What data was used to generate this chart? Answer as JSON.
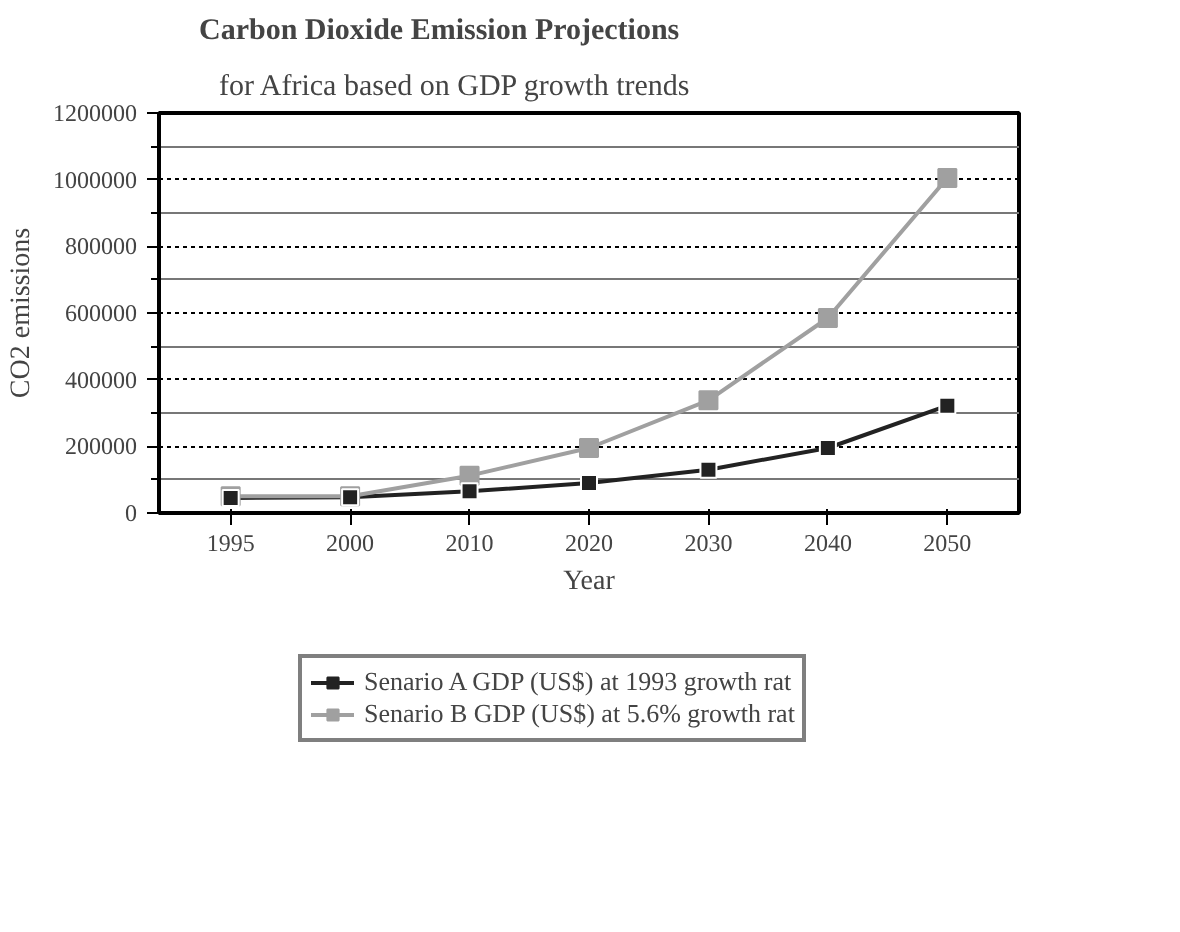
{
  "chart_data": {
    "type": "line",
    "title": "Carbon Dioxide Emission Projections",
    "subtitle": "for Africa based on GDP growth trends",
    "xlabel": "Year",
    "ylabel": "CO2 emissions",
    "categories": [
      "1995",
      "2000",
      "2010",
      "2020",
      "2030",
      "2040",
      "2050"
    ],
    "series": [
      {
        "name": "Senario A GDP (US$) at 1993 growth rat",
        "color": "#222222",
        "values": [
          45000,
          47000,
          65000,
          90000,
          130000,
          195000,
          322000
        ]
      },
      {
        "name": "Senario B GDP (US$) at 5.6% growth rat",
        "color": "#a0a0a0",
        "values": [
          50000,
          50000,
          112000,
          195000,
          338000,
          585000,
          1005000
        ]
      }
    ],
    "ylim": [
      0,
      1200000
    ],
    "yticks": [
      0,
      200000,
      400000,
      600000,
      800000,
      1000000,
      1200000
    ],
    "grid": "y",
    "legend": "bottom",
    "marker": "square",
    "line_style": "solid"
  }
}
